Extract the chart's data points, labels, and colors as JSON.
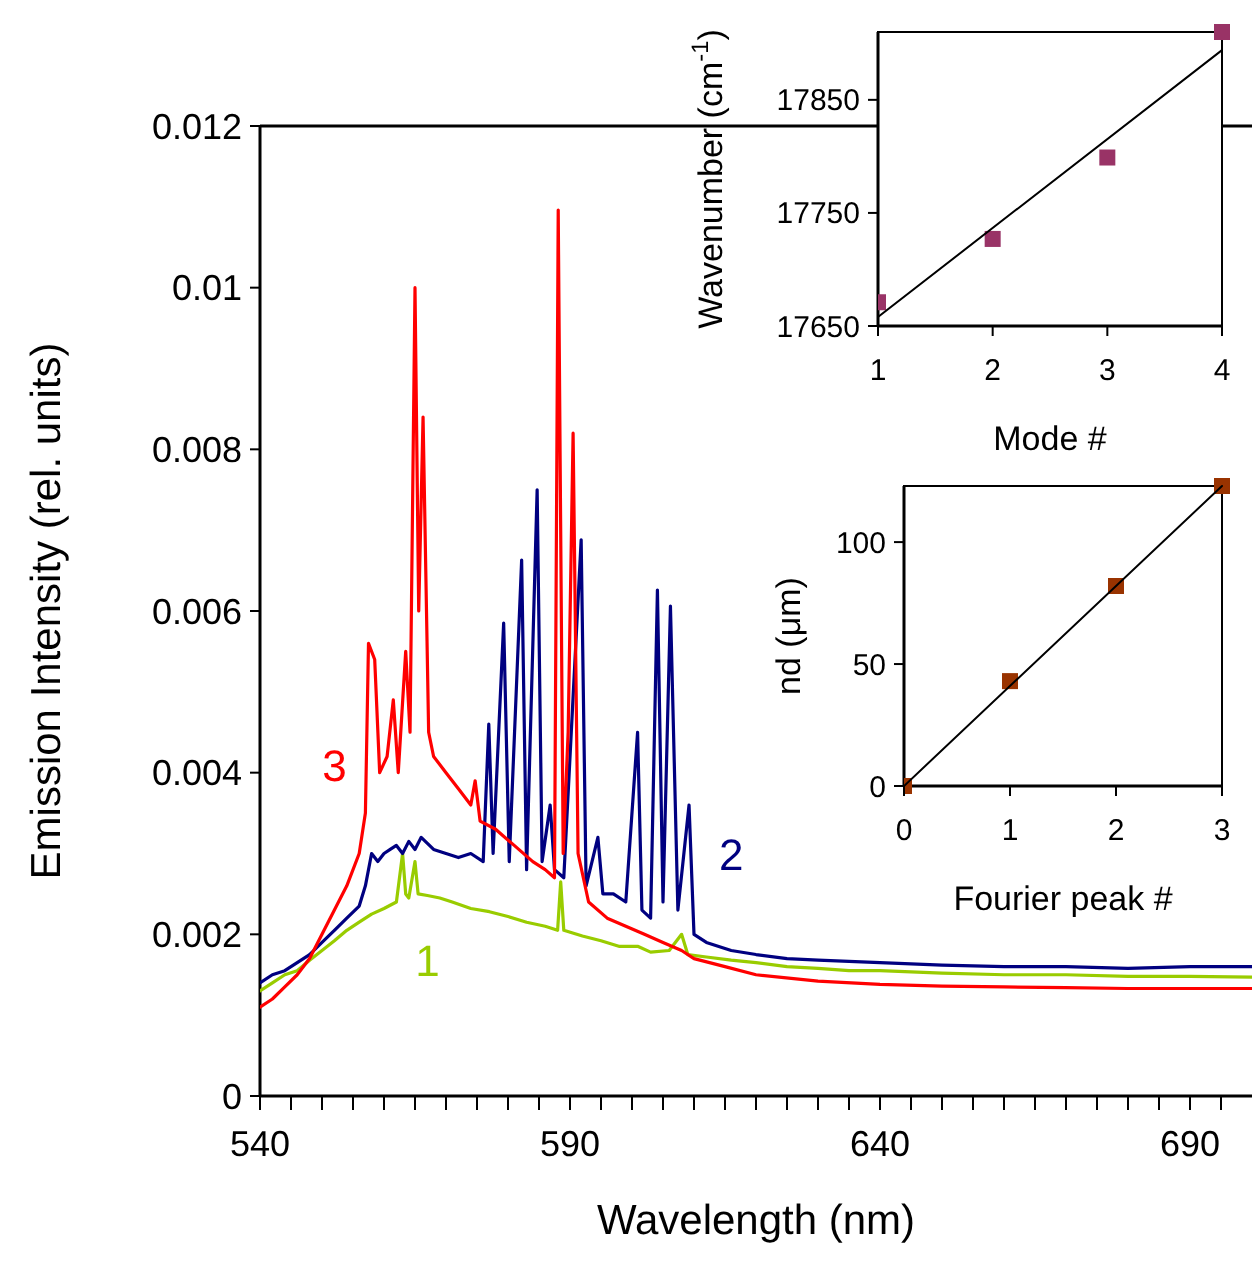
{
  "chart_data": [
    {
      "type": "line",
      "xlabel": "Wavelength (nm)",
      "ylabel": "Emission Intensity (rel. units)",
      "xlim": [
        540,
        700
      ],
      "ylim": [
        0,
        0.012
      ],
      "xticks": [
        540,
        {
          "value": 545,
          "label": null
        },
        {
          "value": 550,
          "label": null
        },
        {
          "value": 555,
          "label": null
        },
        {
          "value": 560,
          "label": null
        },
        {
          "value": 565,
          "label": null
        },
        {
          "value": 570,
          "label": null
        },
        {
          "value": 575,
          "label": null
        },
        {
          "value": 580,
          "label": null
        },
        {
          "value": 585,
          "label": null
        },
        590,
        {
          "value": 595,
          "label": null
        },
        {
          "value": 600,
          "label": null
        },
        {
          "value": 605,
          "label": null
        },
        {
          "value": 610,
          "label": null
        },
        {
          "value": 615,
          "label": null
        },
        {
          "value": 620,
          "label": null
        },
        {
          "value": 625,
          "label": null
        },
        {
          "value": 630,
          "label": null
        },
        {
          "value": 635,
          "label": null
        },
        640,
        {
          "value": 645,
          "label": null
        },
        {
          "value": 650,
          "label": null
        },
        {
          "value": 655,
          "label": null
        },
        {
          "value": 660,
          "label": null
        },
        {
          "value": 665,
          "label": null
        },
        {
          "value": 670,
          "label": null
        },
        {
          "value": 675,
          "label": null
        },
        {
          "value": 680,
          "label": null
        },
        {
          "value": 685,
          "label": null
        },
        690,
        {
          "value": 695,
          "label": null
        }
      ],
      "yticks": [
        0,
        0.002,
        0.004,
        0.006,
        0.008,
        0.01,
        0.012
      ],
      "series": [
        {
          "name": "1",
          "color": "#99cc00",
          "x": [
            540,
            542,
            544,
            546,
            548,
            550,
            552,
            554,
            556,
            558,
            560,
            562,
            563,
            563.5,
            564,
            565,
            565.5,
            567,
            569,
            571,
            574,
            577,
            580,
            583,
            586,
            588,
            588.5,
            589,
            592,
            595,
            598,
            601,
            603,
            606,
            608,
            609,
            612,
            616,
            620,
            625,
            630,
            635,
            640,
            650,
            660,
            670,
            680,
            690,
            700
          ],
          "values": [
            0.0013,
            0.0014,
            0.0015,
            0.00155,
            0.00168,
            0.0018,
            0.00192,
            0.00205,
            0.00215,
            0.00225,
            0.00232,
            0.0024,
            0.003,
            0.0025,
            0.00245,
            0.0029,
            0.0025,
            0.00248,
            0.00245,
            0.0024,
            0.00232,
            0.00228,
            0.00222,
            0.00215,
            0.0021,
            0.00205,
            0.00265,
            0.00205,
            0.00198,
            0.00192,
            0.00185,
            0.00185,
            0.00178,
            0.0018,
            0.002,
            0.00175,
            0.00172,
            0.00168,
            0.00165,
            0.0016,
            0.00158,
            0.00155,
            0.00155,
            0.00152,
            0.0015,
            0.0015,
            0.00148,
            0.00148,
            0.00147
          ]
        },
        {
          "name": "2",
          "color": "#000080",
          "x": [
            540,
            542,
            544,
            546,
            548,
            550,
            552,
            554,
            556,
            557,
            558,
            559,
            560,
            561,
            562,
            563,
            564,
            565,
            566,
            568,
            570,
            572,
            574,
            576,
            576.9,
            577.6,
            579.3,
            580.2,
            582.2,
            583,
            584.7,
            585.5,
            586.8,
            587.5,
            589,
            591.8,
            592.6,
            594.5,
            595.3,
            597,
            599,
            600.9,
            601.6,
            603,
            604.1,
            605,
            606.2,
            607.4,
            609.2,
            610,
            612,
            616,
            620,
            625,
            630,
            640,
            650,
            660,
            670,
            680,
            690,
            700
          ],
          "values": [
            0.0014,
            0.0015,
            0.00155,
            0.00165,
            0.00175,
            0.0019,
            0.00205,
            0.0022,
            0.00235,
            0.0026,
            0.003,
            0.0029,
            0.003,
            0.00305,
            0.0031,
            0.003,
            0.00315,
            0.00305,
            0.0032,
            0.00305,
            0.003,
            0.00295,
            0.003,
            0.0029,
            0.0046,
            0.003,
            0.00585,
            0.0029,
            0.00663,
            0.0028,
            0.0075,
            0.0029,
            0.0036,
            0.0028,
            0.0027,
            0.00688,
            0.0026,
            0.0032,
            0.0025,
            0.0025,
            0.0024,
            0.0045,
            0.0023,
            0.0022,
            0.00626,
            0.0024,
            0.00606,
            0.0023,
            0.0036,
            0.002,
            0.0019,
            0.0018,
            0.00175,
            0.0017,
            0.00168,
            0.00165,
            0.00162,
            0.0016,
            0.0016,
            0.00158,
            0.0016,
            0.0016
          ]
        },
        {
          "name": "3",
          "color": "#ff0000",
          "x": [
            540,
            542,
            544,
            546,
            548,
            550,
            552,
            554,
            556,
            557,
            557.5,
            558.5,
            559.3,
            560.5,
            561.5,
            562.3,
            563.5,
            564.2,
            565,
            565.6,
            566.3,
            567.2,
            568,
            570,
            572,
            574,
            574.7,
            575.5,
            578,
            581,
            584,
            586,
            587.5,
            588.1,
            588.9,
            589.7,
            590.5,
            591.3,
            593,
            596,
            599,
            602,
            605,
            608,
            610,
            615,
            620,
            630,
            640,
            650,
            660,
            670,
            680,
            690,
            700
          ],
          "values": [
            0.0011,
            0.0012,
            0.00135,
            0.0015,
            0.0017,
            0.002,
            0.0023,
            0.0026,
            0.003,
            0.0035,
            0.0056,
            0.0054,
            0.004,
            0.0042,
            0.0049,
            0.004,
            0.0055,
            0.0045,
            0.01,
            0.006,
            0.0084,
            0.0045,
            0.0042,
            0.004,
            0.0038,
            0.0036,
            0.0039,
            0.0034,
            0.0033,
            0.0031,
            0.0029,
            0.0028,
            0.0027,
            0.01096,
            0.003,
            0.0045,
            0.0082,
            0.003,
            0.0024,
            0.0022,
            0.0021,
            0.002,
            0.0019,
            0.0018,
            0.0017,
            0.0016,
            0.0015,
            0.00142,
            0.00138,
            0.00136,
            0.00135,
            0.00134,
            0.00133,
            0.00133,
            0.00133
          ]
        }
      ]
    },
    {
      "type": "scatter",
      "xlabel": "Mode #",
      "ylabel": "Wavenumber (cm$^{-1}$)",
      "xlim": [
        1,
        4
      ],
      "ylim": [
        17650,
        17910
      ],
      "xticks": [
        1,
        2,
        3,
        4
      ],
      "yticks": [
        17650,
        17750,
        17850
      ],
      "series": [
        {
          "marker": "square",
          "color": "#993366",
          "x": [
            1,
            2,
            3,
            4
          ],
          "values": [
            17671,
            17727,
            17799,
            17910
          ]
        },
        {
          "type": "line",
          "marker": "none",
          "color": "#000000",
          "x": [
            1,
            4
          ],
          "values": [
            17658,
            17894
          ]
        }
      ]
    },
    {
      "type": "scatter",
      "xlabel": "Fourier peak #",
      "ylabel": "nd (μm)",
      "xlim": [
        0,
        3
      ],
      "ylim": [
        0,
        123
      ],
      "xticks": [
        0,
        1,
        2,
        3
      ],
      "yticks": [
        0,
        50,
        100
      ],
      "series": [
        {
          "marker": "square",
          "color": "#993300",
          "x": [
            0,
            1,
            2,
            3
          ],
          "values": [
            0,
            43,
            82,
            123
          ]
        },
        {
          "type": "line",
          "marker": "none",
          "color": "#000000",
          "x": [
            0,
            3
          ],
          "values": [
            0,
            123
          ]
        }
      ]
    }
  ]
}
